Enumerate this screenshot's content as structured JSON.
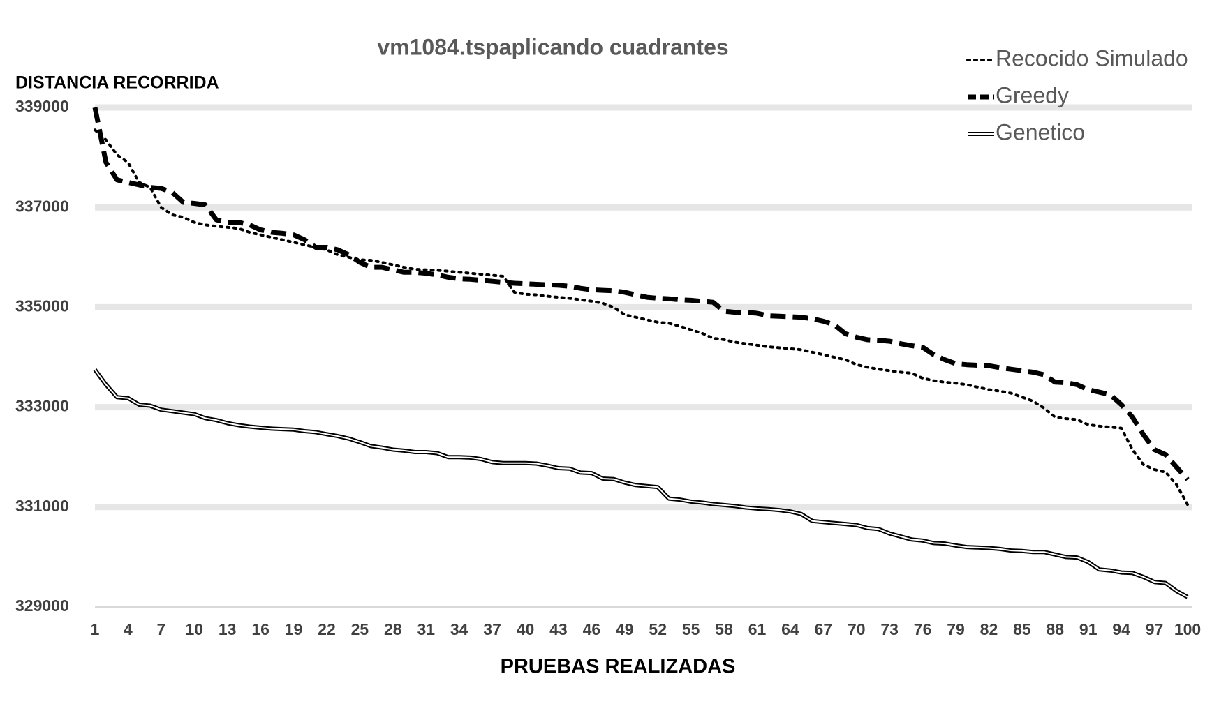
{
  "chart_data": {
    "type": "line",
    "title": "vm1084.tspaplicando cuadrantes",
    "x_label": "PRUEBAS REALIZADAS",
    "y_label": "DISTANCIA RECORRIDA",
    "categories": [
      1,
      null,
      null,
      4,
      null,
      null,
      7,
      null,
      null,
      10,
      null,
      null,
      13,
      null,
      null,
      16,
      null,
      null,
      19,
      null,
      null,
      22,
      null,
      null,
      25,
      null,
      null,
      28,
      null,
      null,
      31,
      null,
      null,
      34,
      null,
      null,
      37,
      null,
      null,
      40,
      null,
      null,
      43,
      null,
      null,
      46,
      null,
      null,
      49,
      null,
      null,
      52,
      null,
      null,
      55,
      null,
      null,
      58,
      null,
      null,
      61,
      null,
      null,
      64,
      null,
      null,
      67,
      null,
      null,
      70,
      null,
      null,
      73,
      null,
      null,
      76,
      null,
      null,
      79,
      null,
      null,
      82,
      null,
      null,
      85,
      null,
      null,
      88,
      null,
      null,
      91,
      null,
      null,
      94,
      null,
      null,
      97,
      null,
      null,
      100
    ],
    "ylim": [
      329000,
      339000
    ],
    "yticks": [
      329000,
      331000,
      333000,
      335000,
      337000,
      339000
    ],
    "grid": true,
    "legend": "top-right",
    "series": [
      {
        "name": "Recocido Simulado",
        "color": "#000000",
        "style": "dotted",
        "values": [
          338550,
          338350,
          338050,
          337900,
          337500,
          337400,
          337000,
          336850,
          336800,
          336700,
          336650,
          336620,
          336600,
          336580,
          336500,
          336450,
          336400,
          336350,
          336300,
          336250,
          336200,
          336150,
          336050,
          336000,
          335950,
          335940,
          335900,
          335850,
          335800,
          335760,
          335750,
          335740,
          335720,
          335700,
          335680,
          335660,
          335640,
          335620,
          335300,
          335260,
          335250,
          335220,
          335200,
          335180,
          335150,
          335120,
          335080,
          335000,
          334850,
          334800,
          334750,
          334700,
          334680,
          334620,
          334550,
          334480,
          334380,
          334350,
          334300,
          334270,
          334240,
          334210,
          334190,
          334170,
          334150,
          334100,
          334050,
          334000,
          333950,
          333850,
          333800,
          333760,
          333730,
          333700,
          333680,
          333580,
          333530,
          333500,
          333480,
          333450,
          333400,
          333350,
          333320,
          333280,
          333200,
          333120,
          332980,
          332800,
          332770,
          332750,
          332650,
          332620,
          332600,
          332580,
          332150,
          331850,
          331750,
          331700,
          331450,
          331050
        ]
      },
      {
        "name": "Greedy",
        "color": "#000000",
        "style": "dashed",
        "values": [
          339000,
          337900,
          337550,
          337500,
          337450,
          337400,
          337380,
          337300,
          337100,
          337080,
          337050,
          336750,
          336700,
          336700,
          336650,
          336550,
          336500,
          336480,
          336450,
          336350,
          336200,
          336200,
          336150,
          336050,
          335900,
          335800,
          335800,
          335750,
          335700,
          335700,
          335680,
          335650,
          335600,
          335570,
          335560,
          335540,
          335520,
          335500,
          335480,
          335470,
          335460,
          335450,
          335440,
          335420,
          335380,
          335350,
          335340,
          335330,
          335300,
          335250,
          335200,
          335180,
          335170,
          335150,
          335140,
          335120,
          335100,
          334920,
          334900,
          334900,
          334880,
          334830,
          334820,
          334810,
          334800,
          334770,
          334720,
          334650,
          334470,
          334400,
          334350,
          334340,
          334320,
          334270,
          334230,
          334200,
          334050,
          333950,
          333870,
          333850,
          333840,
          333830,
          333790,
          333760,
          333730,
          333700,
          333650,
          333500,
          333490,
          333450,
          333350,
          333300,
          333250,
          333050,
          332800,
          332450,
          332150,
          332050,
          331800,
          331550
        ]
      },
      {
        "name": "Genetico",
        "color": "#000000",
        "style": "double",
        "values": [
          333750,
          333450,
          333200,
          333180,
          333050,
          333030,
          332950,
          332920,
          332890,
          332860,
          332780,
          332740,
          332680,
          332640,
          332610,
          332590,
          332570,
          332560,
          332550,
          332520,
          332500,
          332460,
          332420,
          332370,
          332300,
          332220,
          332190,
          332150,
          332130,
          332100,
          332100,
          332080,
          332000,
          332000,
          331990,
          331960,
          331900,
          331880,
          331880,
          331880,
          331870,
          331830,
          331780,
          331770,
          331690,
          331680,
          331570,
          331560,
          331490,
          331440,
          331420,
          331400,
          331170,
          331150,
          331110,
          331090,
          331060,
          331040,
          331020,
          330990,
          330970,
          330960,
          330940,
          330910,
          330860,
          330720,
          330700,
          330680,
          330660,
          330640,
          330580,
          330560,
          330470,
          330410,
          330350,
          330330,
          330280,
          330270,
          330230,
          330200,
          330190,
          330180,
          330160,
          330130,
          330120,
          330100,
          330100,
          330050,
          330000,
          329990,
          329900,
          329750,
          329730,
          329690,
          329680,
          329600,
          329500,
          329480,
          329320,
          329200
        ]
      }
    ]
  }
}
